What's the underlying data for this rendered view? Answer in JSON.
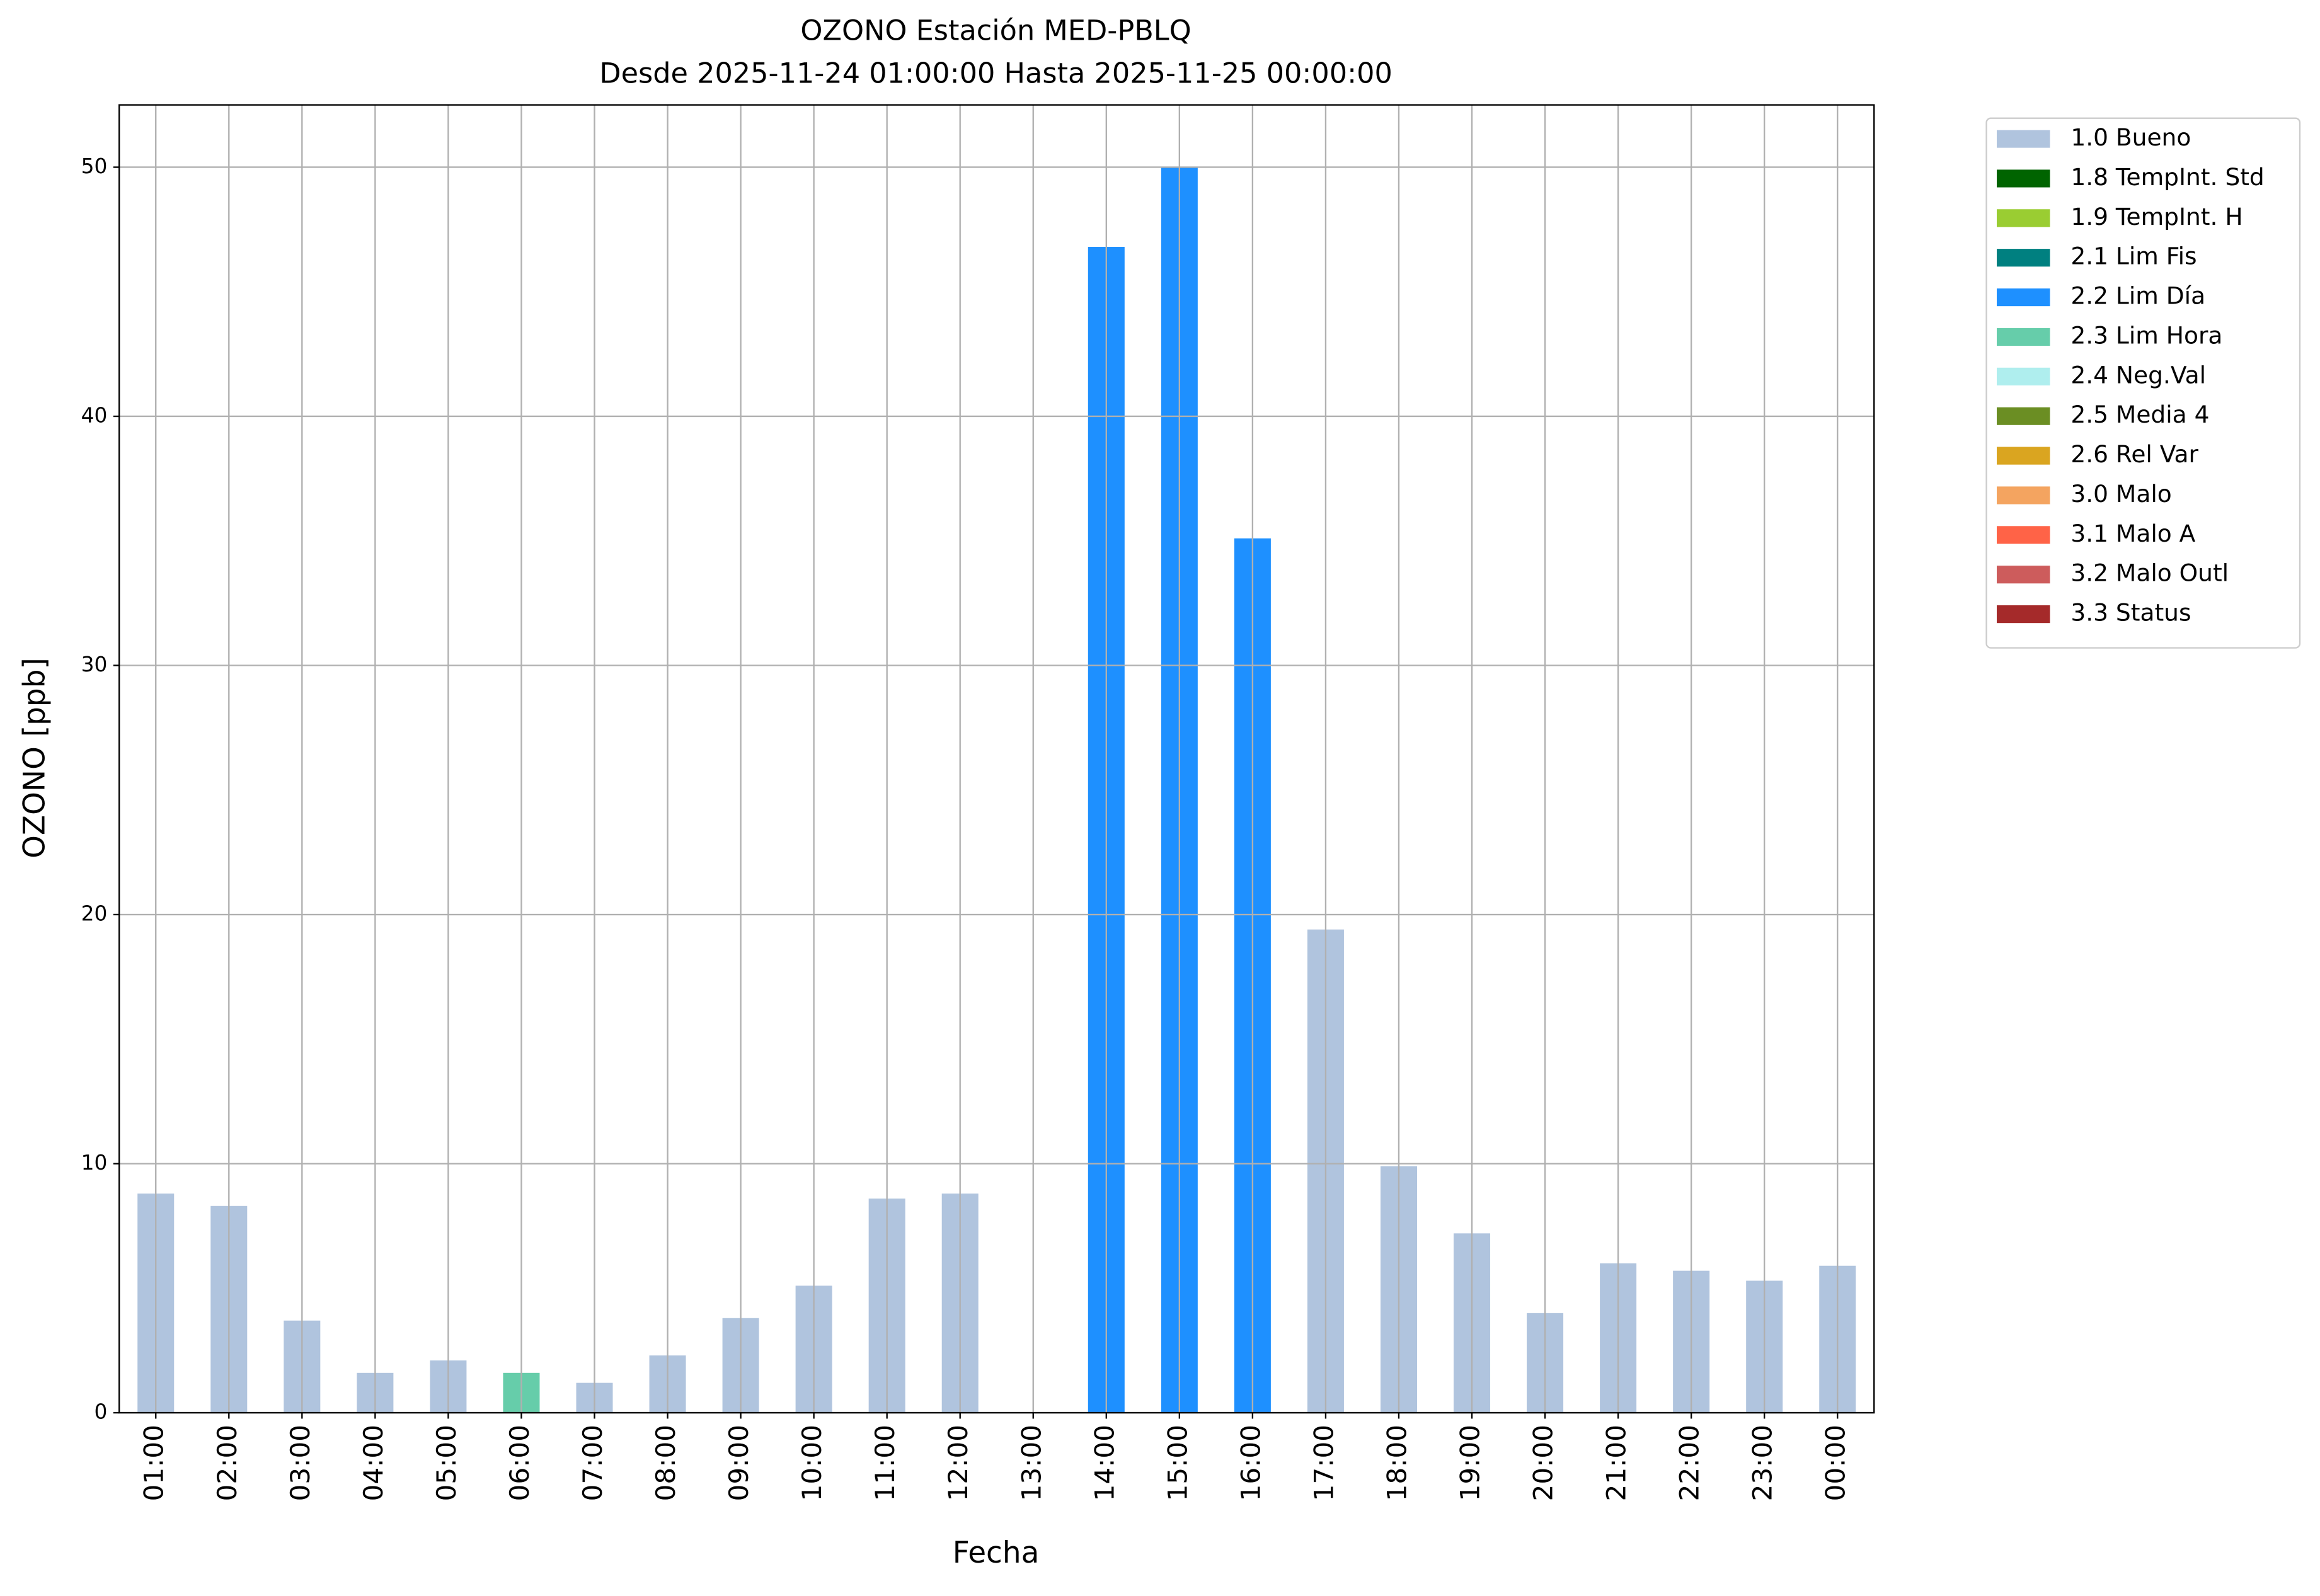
{
  "chart_data": {
    "type": "bar",
    "stacked": true,
    "title": "OZONO Estación MED-PBLQ",
    "subtitle": "Desde 2025-11-24 01:00:00 Hasta 2025-11-25 00:00:00",
    "x_label": "Fecha",
    "y_label": "OZONO [ppb]",
    "categories": [
      "01:00",
      "02:00",
      "03:00",
      "04:00",
      "05:00",
      "06:00",
      "07:00",
      "08:00",
      "09:00",
      "10:00",
      "11:00",
      "12:00",
      "13:00",
      "14:00",
      "15:00",
      "16:00",
      "17:00",
      "18:00",
      "19:00",
      "20:00",
      "21:00",
      "22:00",
      "23:00",
      "00:00"
    ],
    "series": [
      {
        "name": "1.0 Bueno",
        "color": "#b0c4de",
        "values": [
          8.8,
          8.3,
          3.7,
          1.6,
          2.1,
          null,
          1.2,
          2.3,
          3.8,
          5.1,
          8.6,
          8.8,
          null,
          null,
          null,
          null,
          19.4,
          9.9,
          7.2,
          4.0,
          6.0,
          5.7,
          5.3,
          5.9
        ]
      },
      {
        "name": "1.8 TempInt. Std",
        "color": "#006400",
        "values": [
          null,
          null,
          null,
          null,
          null,
          null,
          null,
          null,
          null,
          null,
          null,
          null,
          null,
          null,
          null,
          null,
          null,
          null,
          null,
          null,
          null,
          null,
          null,
          null
        ]
      },
      {
        "name": "1.9 TempInt. H",
        "color": "#9acd32",
        "values": [
          null,
          null,
          null,
          null,
          null,
          null,
          null,
          null,
          null,
          null,
          null,
          null,
          null,
          null,
          null,
          null,
          null,
          null,
          null,
          null,
          null,
          null,
          null,
          null
        ]
      },
      {
        "name": "2.1 Lim Fis",
        "color": "#008080",
        "values": [
          null,
          null,
          null,
          null,
          null,
          null,
          null,
          null,
          null,
          null,
          null,
          null,
          null,
          null,
          null,
          null,
          null,
          null,
          null,
          null,
          null,
          null,
          null,
          null
        ]
      },
      {
        "name": "2.2 Lim Día",
        "color": "#1e90ff",
        "values": [
          null,
          null,
          null,
          null,
          null,
          null,
          null,
          null,
          null,
          null,
          null,
          null,
          null,
          46.8,
          50.0,
          35.1,
          null,
          null,
          null,
          null,
          null,
          null,
          null,
          null
        ]
      },
      {
        "name": "2.3 Lim Hora",
        "color": "#66cdaa",
        "values": [
          null,
          null,
          null,
          null,
          null,
          1.6,
          null,
          null,
          null,
          null,
          null,
          null,
          null,
          null,
          null,
          null,
          null,
          null,
          null,
          null,
          null,
          null,
          null,
          null
        ]
      },
      {
        "name": "2.4 Neg.Val",
        "color": "#afeeee",
        "values": [
          null,
          null,
          null,
          null,
          null,
          null,
          null,
          null,
          null,
          null,
          null,
          null,
          null,
          null,
          null,
          null,
          null,
          null,
          null,
          null,
          null,
          null,
          null,
          null
        ]
      },
      {
        "name": "2.5 Media 4",
        "color": "#6b8e23",
        "values": [
          null,
          null,
          null,
          null,
          null,
          null,
          null,
          null,
          null,
          null,
          null,
          null,
          null,
          null,
          null,
          null,
          null,
          null,
          null,
          null,
          null,
          null,
          null,
          null
        ]
      },
      {
        "name": "2.6 Rel Var",
        "color": "#daa520",
        "values": [
          null,
          null,
          null,
          null,
          null,
          null,
          null,
          null,
          null,
          null,
          null,
          null,
          null,
          null,
          null,
          null,
          null,
          null,
          null,
          null,
          null,
          null,
          null,
          null
        ]
      },
      {
        "name": "3.0 Malo",
        "color": "#f4a460",
        "values": [
          null,
          null,
          null,
          null,
          null,
          null,
          null,
          null,
          null,
          null,
          null,
          null,
          null,
          null,
          null,
          null,
          null,
          null,
          null,
          null,
          null,
          null,
          null,
          null
        ]
      },
      {
        "name": "3.1 Malo A",
        "color": "#ff6347",
        "values": [
          null,
          null,
          null,
          null,
          null,
          null,
          null,
          null,
          null,
          null,
          null,
          null,
          null,
          null,
          null,
          null,
          null,
          null,
          null,
          null,
          null,
          null,
          null,
          null
        ]
      },
      {
        "name": "3.2 Malo Outl",
        "color": "#cd5c5c",
        "values": [
          null,
          null,
          null,
          null,
          null,
          null,
          null,
          null,
          null,
          null,
          null,
          null,
          null,
          null,
          null,
          null,
          null,
          null,
          null,
          null,
          null,
          null,
          null,
          null
        ]
      },
      {
        "name": "3.3 Status",
        "color": "#a52a2a",
        "values": [
          null,
          null,
          null,
          null,
          null,
          null,
          null,
          null,
          null,
          null,
          null,
          null,
          null,
          null,
          null,
          null,
          null,
          null,
          null,
          null,
          null,
          null,
          null,
          null
        ]
      }
    ],
    "ylim": [
      0,
      52.5
    ],
    "yticks": [
      0,
      10,
      20,
      30,
      40,
      50
    ],
    "grid": true,
    "legend": "outside-right"
  }
}
